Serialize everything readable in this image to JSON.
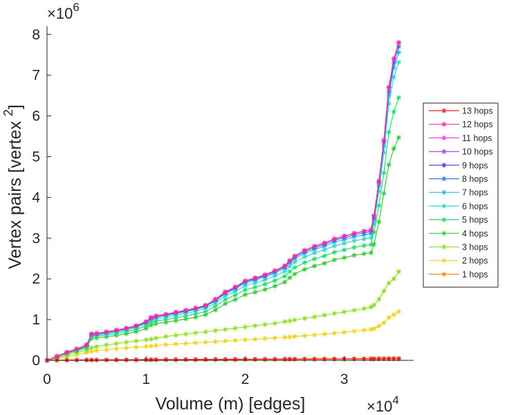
{
  "chart_data": {
    "type": "line",
    "title": "",
    "xlabel": "Volume (m) [edges]",
    "ylabel_parts": [
      "Vertex pairs [vertex",
      "2",
      "]"
    ],
    "x_multiplier_base": "×10",
    "x_multiplier_exp": "4",
    "y_multiplier_base": "×10",
    "y_multiplier_exp": "6",
    "x_scale": 10000,
    "y_scale": 1000000,
    "xlim": [
      0,
      37000
    ],
    "ylim": [
      0,
      8200000
    ],
    "xticks": [
      0,
      10000,
      20000,
      30000
    ],
    "xtick_labels": [
      "0",
      "1",
      "2",
      "3"
    ],
    "yticks": [
      0,
      1000000,
      2000000,
      3000000,
      4000000,
      5000000,
      6000000,
      7000000,
      8000000
    ],
    "ytick_labels": [
      "0",
      "1",
      "2",
      "3",
      "4",
      "5",
      "6",
      "7",
      "8"
    ],
    "grid": false,
    "legend_position": "right",
    "x": [
      0,
      1000,
      2000,
      3000,
      4000,
      4500,
      5000,
      6000,
      7000,
      8000,
      9000,
      10000,
      10500,
      11000,
      12000,
      13000,
      14000,
      15000,
      16000,
      17000,
      18000,
      19000,
      20000,
      21000,
      22000,
      23000,
      24000,
      24500,
      25000,
      26000,
      27000,
      28000,
      29000,
      30000,
      31000,
      32000,
      32700,
      33000,
      33500,
      34000,
      34500,
      35000,
      35500
    ],
    "series": [
      {
        "name": "13 hops",
        "color": "#e6201f",
        "values": [
          0,
          5000,
          8000,
          10000,
          12000,
          12500,
          13000,
          14000,
          15000,
          16000,
          17000,
          18000,
          18500,
          19000,
          20000,
          21000,
          22000,
          23000,
          24000,
          25000,
          26000,
          27000,
          28000,
          29000,
          30000,
          31000,
          32000,
          32500,
          33000,
          34000,
          35000,
          36000,
          37000,
          38000,
          39000,
          40000,
          40500,
          41000,
          42000,
          43000,
          44000,
          45000,
          46000
        ]
      },
      {
        "name": "12 hops",
        "color": "#ff2b9a",
        "values": [
          0,
          100000,
          200000,
          280000,
          380000,
          650000,
          660000,
          700000,
          740000,
          790000,
          850000,
          950000,
          1050000,
          1090000,
          1130000,
          1180000,
          1230000,
          1280000,
          1350000,
          1500000,
          1680000,
          1800000,
          1950000,
          2020000,
          2100000,
          2200000,
          2320000,
          2450000,
          2560000,
          2700000,
          2800000,
          2880000,
          2980000,
          3050000,
          3120000,
          3170000,
          3200000,
          3550000,
          4400000,
          5400000,
          6700000,
          7400000,
          7800000
        ]
      },
      {
        "name": "11 hops",
        "color": "#ee40e0",
        "values": [
          0,
          100000,
          200000,
          280000,
          380000,
          650000,
          660000,
          700000,
          740000,
          790000,
          850000,
          950000,
          1050000,
          1090000,
          1130000,
          1180000,
          1230000,
          1280000,
          1350000,
          1500000,
          1680000,
          1800000,
          1950000,
          2020000,
          2100000,
          2200000,
          2320000,
          2450000,
          2560000,
          2700000,
          2800000,
          2880000,
          2980000,
          3050000,
          3120000,
          3170000,
          3200000,
          3550000,
          4400000,
          5400000,
          6700000,
          7400000,
          7800000
        ]
      },
      {
        "name": "10 hops",
        "color": "#a040f0",
        "values": [
          0,
          100000,
          200000,
          280000,
          380000,
          650000,
          660000,
          700000,
          740000,
          790000,
          850000,
          950000,
          1050000,
          1090000,
          1130000,
          1180000,
          1230000,
          1280000,
          1350000,
          1500000,
          1680000,
          1800000,
          1950000,
          2020000,
          2100000,
          2200000,
          2320000,
          2450000,
          2560000,
          2700000,
          2800000,
          2880000,
          2980000,
          3050000,
          3120000,
          3170000,
          3200000,
          3550000,
          4400000,
          5400000,
          6700000,
          7400000,
          7800000
        ]
      },
      {
        "name": "9 hops",
        "color": "#3a3ae6",
        "values": [
          0,
          100000,
          200000,
          280000,
          380000,
          650000,
          660000,
          700000,
          740000,
          790000,
          850000,
          950000,
          1050000,
          1090000,
          1130000,
          1180000,
          1230000,
          1280000,
          1350000,
          1500000,
          1680000,
          1800000,
          1950000,
          2020000,
          2100000,
          2200000,
          2320000,
          2450000,
          2560000,
          2700000,
          2800000,
          2880000,
          2980000,
          3050000,
          3120000,
          3170000,
          3200000,
          3550000,
          4400000,
          5400000,
          6700000,
          7400000,
          7800000
        ]
      },
      {
        "name": "8 hops",
        "color": "#2f77f0",
        "values": [
          0,
          98000,
          196000,
          275000,
          372000,
          640000,
          650000,
          690000,
          730000,
          780000,
          840000,
          935000,
          1035000,
          1075000,
          1115000,
          1165000,
          1215000,
          1265000,
          1335000,
          1480000,
          1660000,
          1780000,
          1925000,
          1995000,
          2075000,
          2175000,
          2295000,
          2420000,
          2530000,
          2665000,
          2765000,
          2845000,
          2945000,
          3010000,
          3080000,
          3130000,
          3160000,
          3500000,
          4350000,
          5350000,
          6600000,
          7300000,
          7700000
        ]
      },
      {
        "name": "7 hops",
        "color": "#28b8ee",
        "values": [
          0,
          96000,
          192000,
          270000,
          365000,
          630000,
          640000,
          678000,
          718000,
          766000,
          826000,
          918000,
          1018000,
          1058000,
          1098000,
          1146000,
          1196000,
          1246000,
          1316000,
          1456000,
          1634000,
          1752000,
          1894000,
          1964000,
          2042000,
          2142000,
          2260000,
          2385000,
          2492000,
          2625000,
          2724000,
          2802000,
          2900000,
          2965000,
          3032000,
          3080000,
          3110000,
          3450000,
          4280000,
          5260000,
          6500000,
          7180000,
          7560000
        ]
      },
      {
        "name": "6 hops",
        "color": "#36d7c9",
        "values": [
          0,
          93000,
          186000,
          262000,
          352000,
          610000,
          620000,
          656000,
          694000,
          740000,
          798000,
          888000,
          984000,
          1022000,
          1060000,
          1106000,
          1155000,
          1204000,
          1272000,
          1408000,
          1580000,
          1694000,
          1832000,
          1900000,
          1976000,
          2072000,
          2186000,
          2308000,
          2412000,
          2540000,
          2636000,
          2712000,
          2808000,
          2870000,
          2936000,
          2982000,
          3010000,
          3350000,
          4150000,
          5100000,
          6300000,
          6950000,
          7320000
        ]
      },
      {
        "name": "5 hops",
        "color": "#24dc71",
        "values": [
          0,
          88000,
          176000,
          248000,
          334000,
          580000,
          590000,
          622000,
          657000,
          700000,
          756000,
          840000,
          930000,
          966000,
          1002000,
          1046000,
          1092000,
          1138000,
          1202000,
          1332000,
          1494000,
          1602000,
          1732000,
          1796000,
          1868000,
          1958000,
          2066000,
          2180000,
          2278000,
          2400000,
          2490000,
          2562000,
          2652000,
          2712000,
          2774000,
          2816000,
          2840000,
          3150000,
          3800000,
          4600000,
          5600000,
          6100000,
          6450000
        ]
      },
      {
        "name": "4 hops",
        "color": "#3cc83a",
        "values": [
          0,
          82000,
          164000,
          230000,
          310000,
          540000,
          550000,
          580000,
          612000,
          652000,
          704000,
          782000,
          866000,
          900000,
          933000,
          974000,
          1017000,
          1060000,
          1120000,
          1240000,
          1392000,
          1492000,
          1612000,
          1672000,
          1738000,
          1822000,
          1922000,
          2028000,
          2120000,
          2232000,
          2316000,
          2382000,
          2466000,
          2520000,
          2578000,
          2618000,
          2640000,
          2850000,
          3400000,
          4100000,
          4800000,
          5200000,
          5470000
        ]
      },
      {
        "name": "3 hops",
        "color": "#8ee022",
        "values": [
          0,
          60000,
          130000,
          190000,
          250000,
          310000,
          340000,
          380000,
          410000,
          445000,
          475000,
          505000,
          520000,
          545000,
          585000,
          615000,
          645000,
          675000,
          700000,
          730000,
          760000,
          790000,
          820000,
          850000,
          880000,
          910000,
          950000,
          970000,
          990000,
          1030000,
          1070000,
          1110000,
          1150000,
          1190000,
          1230000,
          1270000,
          1310000,
          1360000,
          1500000,
          1700000,
          1900000,
          2000000,
          2180000
        ]
      },
      {
        "name": "2 hops",
        "color": "#f2d21c",
        "values": [
          0,
          40000,
          90000,
          140000,
          190000,
          220000,
          240000,
          260000,
          285000,
          305000,
          325000,
          340000,
          350000,
          365000,
          385000,
          400000,
          415000,
          430000,
          445000,
          460000,
          475000,
          490000,
          505000,
          520000,
          535000,
          550000,
          565000,
          575000,
          585000,
          605000,
          625000,
          645000,
          665000,
          690000,
          715000,
          740000,
          760000,
          780000,
          840000,
          920000,
          1050000,
          1120000,
          1200000
        ]
      },
      {
        "name": "1 hops",
        "color": "#f58a22",
        "values": [
          0,
          1000,
          2000,
          3000,
          4000,
          4500,
          5000,
          6000,
          7000,
          8000,
          9000,
          10000,
          10500,
          11000,
          12000,
          13000,
          14000,
          15000,
          16000,
          17000,
          18000,
          19000,
          20000,
          21000,
          22000,
          23000,
          24000,
          24500,
          25000,
          26000,
          27000,
          28000,
          29000,
          30000,
          31000,
          32000,
          32700,
          33000,
          33500,
          34000,
          34500,
          35000,
          35500
        ]
      }
    ]
  }
}
